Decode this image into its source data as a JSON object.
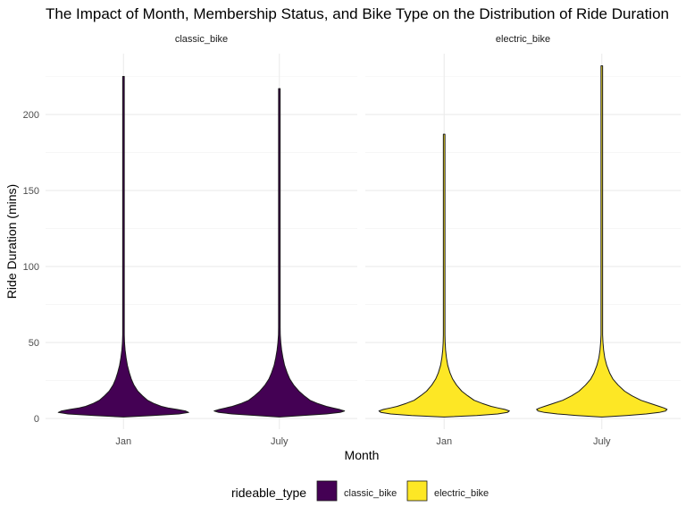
{
  "chart_data": {
    "type": "violin",
    "title": "The Impact of Month, Membership Status, and Bike Type on the Distribution of Ride Duration",
    "xlabel": "Month",
    "ylabel": "Ride Duration (mins)",
    "categories": [
      "Jan",
      "July"
    ],
    "ylim": [
      -7,
      240
    ],
    "yticks": [
      0,
      50,
      100,
      150,
      200
    ],
    "grid": true,
    "facets": [
      {
        "label": "classic_bike",
        "fill": "#440154",
        "violins": [
          {
            "category": "Jan",
            "profile": [
              [
                1,
                0.0
              ],
              [
                2,
                0.45
              ],
              [
                3,
                0.85
              ],
              [
                4,
                1.0
              ],
              [
                5,
                0.95
              ],
              [
                6,
                0.82
              ],
              [
                7,
                0.68
              ],
              [
                8,
                0.58
              ],
              [
                10,
                0.46
              ],
              [
                12,
                0.37
              ],
              [
                15,
                0.29
              ],
              [
                18,
                0.22
              ],
              [
                22,
                0.16
              ],
              [
                26,
                0.12
              ],
              [
                30,
                0.09
              ],
              [
                35,
                0.06
              ],
              [
                40,
                0.04
              ],
              [
                45,
                0.025
              ],
              [
                50,
                0.016
              ],
              [
                55,
                0.01
              ],
              [
                60,
                0.006
              ],
              [
                80,
                0.004
              ],
              [
                120,
                0.003
              ],
              [
                180,
                0.003
              ],
              [
                225,
                0.0
              ]
            ]
          },
          {
            "category": "July",
            "profile": [
              [
                1,
                0.0
              ],
              [
                2,
                0.35
              ],
              [
                3,
                0.72
              ],
              [
                4,
                0.93
              ],
              [
                5,
                1.0
              ],
              [
                6,
                0.92
              ],
              [
                7,
                0.82
              ],
              [
                8,
                0.72
              ],
              [
                10,
                0.58
              ],
              [
                12,
                0.47
              ],
              [
                15,
                0.38
              ],
              [
                18,
                0.3
              ],
              [
                22,
                0.22
              ],
              [
                26,
                0.16
              ],
              [
                30,
                0.12
              ],
              [
                35,
                0.08
              ],
              [
                40,
                0.055
              ],
              [
                45,
                0.035
              ],
              [
                50,
                0.022
              ],
              [
                55,
                0.014
              ],
              [
                60,
                0.009
              ],
              [
                80,
                0.005
              ],
              [
                120,
                0.003
              ],
              [
                180,
                0.003
              ],
              [
                217,
                0.0
              ]
            ]
          }
        ]
      },
      {
        "label": "electric_bike",
        "fill": "#fde725",
        "violins": [
          {
            "category": "Jan",
            "profile": [
              [
                1,
                0.0
              ],
              [
                2,
                0.5
              ],
              [
                3,
                0.82
              ],
              [
                4,
                0.97
              ],
              [
                5,
                1.0
              ],
              [
                6,
                0.93
              ],
              [
                7,
                0.82
              ],
              [
                8,
                0.72
              ],
              [
                10,
                0.58
              ],
              [
                12,
                0.46
              ],
              [
                15,
                0.36
              ],
              [
                18,
                0.27
              ],
              [
                22,
                0.19
              ],
              [
                26,
                0.13
              ],
              [
                30,
                0.09
              ],
              [
                35,
                0.055
              ],
              [
                40,
                0.035
              ],
              [
                45,
                0.022
              ],
              [
                50,
                0.015
              ],
              [
                55,
                0.01
              ],
              [
                60,
                0.007
              ],
              [
                70,
                0.005
              ],
              [
                100,
                0.003
              ],
              [
                150,
                0.003
              ],
              [
                187,
                0.0
              ]
            ]
          },
          {
            "category": "July",
            "profile": [
              [
                1,
                0.0
              ],
              [
                2,
                0.38
              ],
              [
                3,
                0.68
              ],
              [
                4,
                0.88
              ],
              [
                5,
                0.98
              ],
              [
                6,
                1.0
              ],
              [
                7,
                0.95
              ],
              [
                8,
                0.88
              ],
              [
                10,
                0.74
              ],
              [
                12,
                0.6
              ],
              [
                15,
                0.46
              ],
              [
                18,
                0.35
              ],
              [
                22,
                0.25
              ],
              [
                26,
                0.17
              ],
              [
                30,
                0.12
              ],
              [
                35,
                0.075
              ],
              [
                40,
                0.045
              ],
              [
                45,
                0.028
              ],
              [
                50,
                0.018
              ],
              [
                55,
                0.012
              ],
              [
                60,
                0.008
              ],
              [
                70,
                0.005
              ],
              [
                100,
                0.003
              ],
              [
                180,
                0.003
              ],
              [
                232,
                0.0
              ]
            ]
          }
        ]
      }
    ],
    "legend": {
      "title": "rideable_type",
      "position": "bottom",
      "items": [
        {
          "label": "classic_bike",
          "color": "#440154"
        },
        {
          "label": "electric_bike",
          "color": "#fde725"
        }
      ]
    }
  }
}
